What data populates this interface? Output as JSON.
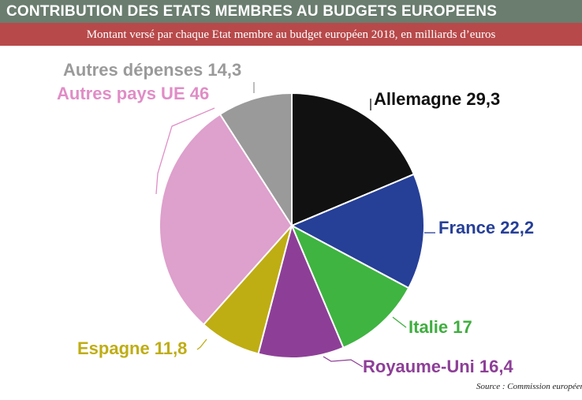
{
  "header": {
    "title": "CONTRIBUTION DES ETATS MEMBRES AU BUDGETS EUROPEENS",
    "subtitle": "Montant versé par chaque Etat membre au budget européen 2018, en milliards d’euros"
  },
  "source": "Source : Commission européenne",
  "colors": {
    "header_bg": "#6a7d6f",
    "subtitle_bg": "#b8494a"
  },
  "chart_data": {
    "type": "pie",
    "title": "CONTRIBUTION DES ETATS MEMBRES AU BUDGETS EUROPEENS",
    "unit": "milliards d'euros",
    "start": "top, clockwise",
    "slices": [
      {
        "label": "Allemagne 29,3",
        "name": "Allemagne",
        "value": 29.3,
        "color": "#111111",
        "label_color": "#111111"
      },
      {
        "label": "France 22,2",
        "name": "France",
        "value": 22.2,
        "color": "#263f97",
        "label_color": "#263f97"
      },
      {
        "label": "Italie 17",
        "name": "Italie",
        "value": 17,
        "color": "#3fb441",
        "label_color": "#3fae3f"
      },
      {
        "label": "Royaume-Uni 16,4",
        "name": "Royaume-Uni",
        "value": 16.4,
        "color": "#8d3f97",
        "label_color": "#8d3f97"
      },
      {
        "label": "Espagne 11,8",
        "name": "Espagne",
        "value": 11.8,
        "color": "#bfad14",
        "label_color": "#bfad14"
      },
      {
        "label": "Autres pays UE 46",
        "name": "Autres pays UE",
        "value": 46,
        "color": "#dea0cc",
        "label_color": "#e08dc6"
      },
      {
        "label": "Autres dépenses 14,3",
        "name": "Autres dépenses",
        "value": 14.3,
        "color": "#9a9a9a",
        "label_color": "#9a9a9a"
      }
    ]
  }
}
